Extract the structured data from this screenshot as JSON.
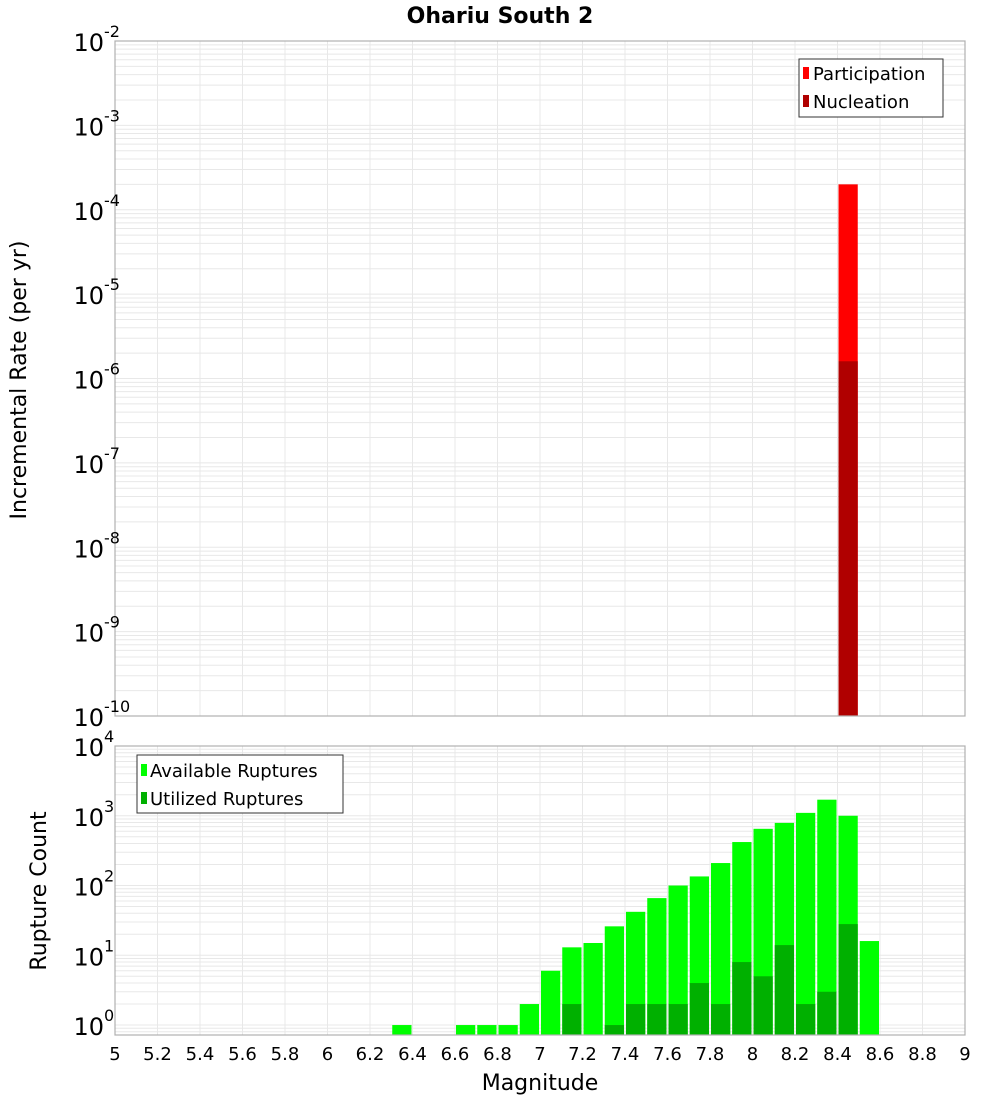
{
  "title": "Ohariu South 2",
  "colors": {
    "participation": "#ff0000",
    "nucleation": "#b00000",
    "available": "#00ff00",
    "utilized": "#00b000",
    "grid": "#e8e8e8",
    "axis": "#b0b0b0"
  },
  "chart_data": [
    {
      "type": "bar",
      "title": "Ohariu South 2",
      "xlabel": "Magnitude",
      "ylabel": "Incremental Rate (per yr)",
      "yscale": "log",
      "ylim": [
        1e-10,
        0.01
      ],
      "xlim": [
        5,
        9
      ],
      "ytick_exponents": [
        -2,
        -3,
        -4,
        -5,
        -6,
        -7,
        -8,
        -9,
        -10
      ],
      "legend": {
        "position": "upper right",
        "entries": [
          "Participation",
          "Nucleation"
        ]
      },
      "grid": true,
      "series": [
        {
          "name": "Participation",
          "color": "#ff0000",
          "x": [
            8.45
          ],
          "values": [
            0.0002
          ]
        },
        {
          "name": "Nucleation",
          "color": "#b00000",
          "x": [
            8.45
          ],
          "values": [
            1.6e-06
          ]
        }
      ]
    },
    {
      "type": "bar",
      "xlabel": "Magnitude",
      "ylabel": "Rupture Count",
      "yscale": "log",
      "ylim": [
        0.72,
        10000
      ],
      "xlim": [
        5,
        9
      ],
      "ytick_exponents": [
        4,
        3,
        2,
        1,
        0
      ],
      "xticks": [
        "5",
        "5.2",
        "5.4",
        "5.6",
        "5.8",
        "6",
        "6.2",
        "6.4",
        "6.6",
        "6.8",
        "7",
        "7.2",
        "7.4",
        "7.6",
        "7.8",
        "8",
        "8.2",
        "8.4",
        "8.6",
        "8.8",
        "9"
      ],
      "legend": {
        "position": "upper left",
        "entries": [
          "Available Ruptures",
          "Utilized Ruptures"
        ]
      },
      "grid": true,
      "series": [
        {
          "name": "Available Ruptures",
          "color": "#00ff00",
          "x": [
            6.35,
            6.65,
            6.75,
            6.85,
            6.95,
            7.05,
            7.15,
            7.25,
            7.35,
            7.45,
            7.55,
            7.65,
            7.75,
            7.85,
            7.95,
            8.05,
            8.15,
            8.25,
            8.35,
            8.45,
            8.55
          ],
          "values": [
            1,
            1,
            1,
            1,
            2,
            6,
            13,
            15,
            26,
            42,
            66,
            100,
            135,
            210,
            420,
            650,
            790,
            1100,
            1700,
            1000,
            16
          ]
        },
        {
          "name": "Utilized Ruptures",
          "color": "#00b000",
          "x": [
            7.15,
            7.35,
            7.45,
            7.55,
            7.65,
            7.75,
            7.85,
            7.95,
            8.05,
            8.15,
            8.25,
            8.35,
            8.45
          ],
          "values": [
            2,
            1,
            2,
            2,
            2,
            4,
            2,
            8,
            5,
            14,
            2,
            3,
            28
          ]
        }
      ]
    }
  ]
}
